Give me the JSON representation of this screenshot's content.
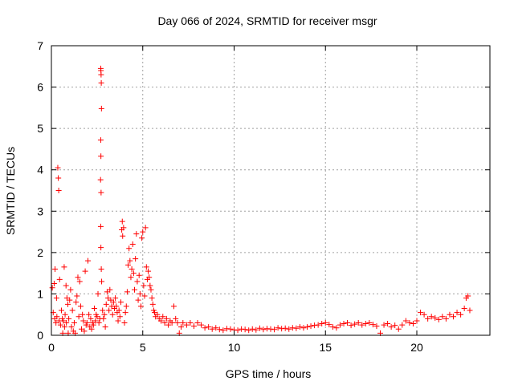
{
  "chart_data": {
    "type": "scatter",
    "title": "Day 066 of 2024, SRMTID for receiver msgr",
    "xlabel": "GPS time / hours",
    "ylabel": "SRMTID / TECUs",
    "xlim": [
      0,
      24
    ],
    "ylim": [
      0,
      7
    ],
    "xticks": [
      0,
      5,
      10,
      15,
      20
    ],
    "yticks": [
      0,
      1,
      2,
      3,
      4,
      5,
      6,
      7
    ],
    "xtick_labels": [
      "0",
      "5",
      "10",
      "15",
      "20"
    ],
    "ytick_labels": [
      "0",
      "1",
      "2",
      "3",
      "4",
      "5",
      "6",
      "7"
    ],
    "grid": true,
    "marker": "+",
    "color": "#ff0000",
    "series": [
      {
        "name": "SRMTID",
        "points": [
          [
            0.05,
            1.15
          ],
          [
            0.1,
            0.55
          ],
          [
            0.15,
            1.25
          ],
          [
            0.18,
            0.4
          ],
          [
            0.2,
            1.6
          ],
          [
            0.25,
            0.3
          ],
          [
            0.28,
            0.9
          ],
          [
            0.3,
            0.45
          ],
          [
            0.35,
            4.05
          ],
          [
            0.38,
            3.8
          ],
          [
            0.4,
            3.5
          ],
          [
            0.42,
            0.35
          ],
          [
            0.45,
            1.35
          ],
          [
            0.5,
            0.25
          ],
          [
            0.55,
            0.6
          ],
          [
            0.6,
            0.4
          ],
          [
            0.62,
            0.05
          ],
          [
            0.65,
            0.35
          ],
          [
            0.7,
            1.65
          ],
          [
            0.72,
            0.2
          ],
          [
            0.75,
            0.5
          ],
          [
            0.8,
            1.2
          ],
          [
            0.82,
            0.3
          ],
          [
            0.85,
            0.9
          ],
          [
            0.9,
            0.75
          ],
          [
            0.92,
            0.05
          ],
          [
            0.95,
            0.4
          ],
          [
            1.0,
            0.85
          ],
          [
            1.05,
            1.1
          ],
          [
            1.1,
            0.2
          ],
          [
            1.15,
            0.6
          ],
          [
            1.2,
            0.1
          ],
          [
            1.25,
            0.3
          ],
          [
            1.3,
            0.05
          ],
          [
            1.35,
            0.8
          ],
          [
            1.4,
            0.95
          ],
          [
            1.45,
            1.4
          ],
          [
            1.5,
            0.45
          ],
          [
            1.55,
            1.3
          ],
          [
            1.6,
            0.7
          ],
          [
            1.65,
            0.15
          ],
          [
            1.7,
            0.5
          ],
          [
            1.75,
            0.35
          ],
          [
            1.8,
            0.1
          ],
          [
            1.85,
            1.55
          ],
          [
            1.9,
            0.25
          ],
          [
            1.95,
            0.3
          ],
          [
            2.0,
            1.8
          ],
          [
            2.05,
            0.5
          ],
          [
            2.1,
            0.2
          ],
          [
            2.15,
            0.4
          ],
          [
            2.2,
            0.15
          ],
          [
            2.25,
            0.3
          ],
          [
            2.3,
            0.25
          ],
          [
            2.35,
            0.65
          ],
          [
            2.4,
            0.35
          ],
          [
            2.45,
            0.5
          ],
          [
            2.5,
            0.45
          ],
          [
            2.55,
            1.0
          ],
          [
            2.6,
            0.3
          ],
          [
            2.65,
            0.4
          ],
          [
            2.7,
            6.45
          ],
          [
            2.71,
            6.4
          ],
          [
            2.72,
            6.3
          ],
          [
            2.73,
            6.1
          ],
          [
            2.74,
            5.48
          ],
          [
            2.7,
            4.72
          ],
          [
            2.71,
            4.33
          ],
          [
            2.69,
            3.76
          ],
          [
            2.72,
            3.45
          ],
          [
            2.7,
            2.63
          ],
          [
            2.71,
            2.12
          ],
          [
            2.73,
            1.6
          ],
          [
            2.75,
            1.3
          ],
          [
            2.8,
            0.6
          ],
          [
            2.85,
            0.4
          ],
          [
            2.9,
            0.5
          ],
          [
            2.95,
            0.2
          ],
          [
            3.0,
            0.75
          ],
          [
            3.05,
            1.05
          ],
          [
            3.1,
            0.9
          ],
          [
            3.15,
            0.6
          ],
          [
            3.2,
            1.1
          ],
          [
            3.25,
            0.85
          ],
          [
            3.3,
            0.7
          ],
          [
            3.35,
            0.5
          ],
          [
            3.4,
            0.8
          ],
          [
            3.45,
            0.65
          ],
          [
            3.5,
            0.9
          ],
          [
            3.55,
            0.7
          ],
          [
            3.6,
            0.55
          ],
          [
            3.65,
            0.35
          ],
          [
            3.7,
            0.6
          ],
          [
            3.75,
            0.45
          ],
          [
            3.8,
            0.8
          ],
          [
            3.85,
            2.55
          ],
          [
            3.88,
            2.75
          ],
          [
            3.9,
            2.4
          ],
          [
            3.95,
            2.6
          ],
          [
            4.0,
            0.3
          ],
          [
            4.05,
            0.55
          ],
          [
            4.1,
            0.7
          ],
          [
            4.15,
            1.05
          ],
          [
            4.2,
            1.7
          ],
          [
            4.25,
            2.1
          ],
          [
            4.3,
            1.8
          ],
          [
            4.35,
            1.4
          ],
          [
            4.4,
            1.6
          ],
          [
            4.45,
            2.2
          ],
          [
            4.5,
            1.5
          ],
          [
            4.55,
            1.1
          ],
          [
            4.6,
            1.85
          ],
          [
            4.65,
            2.45
          ],
          [
            4.7,
            1.3
          ],
          [
            4.75,
            0.85
          ],
          [
            4.8,
            1.45
          ],
          [
            4.85,
            1.0
          ],
          [
            4.9,
            0.7
          ],
          [
            4.95,
            2.35
          ],
          [
            5.0,
            2.5
          ],
          [
            5.05,
            1.2
          ],
          [
            5.1,
            0.95
          ],
          [
            5.15,
            2.6
          ],
          [
            5.2,
            1.65
          ],
          [
            5.25,
            1.35
          ],
          [
            5.3,
            1.55
          ],
          [
            5.35,
            1.4
          ],
          [
            5.4,
            1.2
          ],
          [
            5.45,
            1.1
          ],
          [
            5.5,
            0.9
          ],
          [
            5.55,
            0.75
          ],
          [
            5.6,
            0.6
          ],
          [
            5.65,
            0.55
          ],
          [
            5.7,
            0.45
          ],
          [
            5.8,
            0.5
          ],
          [
            5.9,
            0.4
          ],
          [
            6.0,
            0.35
          ],
          [
            6.1,
            0.45
          ],
          [
            6.2,
            0.3
          ],
          [
            6.3,
            0.4
          ],
          [
            6.4,
            0.25
          ],
          [
            6.5,
            0.35
          ],
          [
            6.6,
            0.3
          ],
          [
            6.7,
            0.7
          ],
          [
            6.8,
            0.4
          ],
          [
            6.9,
            0.3
          ],
          [
            7.0,
            0.05
          ],
          [
            7.1,
            0.2
          ],
          [
            7.2,
            0.3
          ],
          [
            7.4,
            0.25
          ],
          [
            7.6,
            0.3
          ],
          [
            7.8,
            0.22
          ],
          [
            8.0,
            0.3
          ],
          [
            8.2,
            0.25
          ],
          [
            8.4,
            0.18
          ],
          [
            8.6,
            0.2
          ],
          [
            8.8,
            0.15
          ],
          [
            9.0,
            0.18
          ],
          [
            9.2,
            0.14
          ],
          [
            9.4,
            0.12
          ],
          [
            9.6,
            0.16
          ],
          [
            9.8,
            0.15
          ],
          [
            10.0,
            0.13
          ],
          [
            10.2,
            0.12
          ],
          [
            10.4,
            0.15
          ],
          [
            10.6,
            0.14
          ],
          [
            10.8,
            0.12
          ],
          [
            11.0,
            0.15
          ],
          [
            11.2,
            0.13
          ],
          [
            11.4,
            0.17
          ],
          [
            11.6,
            0.14
          ],
          [
            11.8,
            0.16
          ],
          [
            12.0,
            0.15
          ],
          [
            12.2,
            0.14
          ],
          [
            12.4,
            0.18
          ],
          [
            12.6,
            0.16
          ],
          [
            12.8,
            0.17
          ],
          [
            13.0,
            0.15
          ],
          [
            13.2,
            0.18
          ],
          [
            13.4,
            0.17
          ],
          [
            13.6,
            0.2
          ],
          [
            13.8,
            0.18
          ],
          [
            14.0,
            0.2
          ],
          [
            14.2,
            0.22
          ],
          [
            14.4,
            0.24
          ],
          [
            14.6,
            0.25
          ],
          [
            14.8,
            0.28
          ],
          [
            15.0,
            0.3
          ],
          [
            15.2,
            0.26
          ],
          [
            15.4,
            0.2
          ],
          [
            15.6,
            0.18
          ],
          [
            15.8,
            0.25
          ],
          [
            16.0,
            0.28
          ],
          [
            16.2,
            0.3
          ],
          [
            16.4,
            0.24
          ],
          [
            16.6,
            0.27
          ],
          [
            16.8,
            0.3
          ],
          [
            17.0,
            0.25
          ],
          [
            17.2,
            0.28
          ],
          [
            17.4,
            0.3
          ],
          [
            17.6,
            0.26
          ],
          [
            17.8,
            0.22
          ],
          [
            18.0,
            0.05
          ],
          [
            18.2,
            0.25
          ],
          [
            18.4,
            0.28
          ],
          [
            18.6,
            0.2
          ],
          [
            18.8,
            0.24
          ],
          [
            19.0,
            0.15
          ],
          [
            19.2,
            0.25
          ],
          [
            19.4,
            0.35
          ],
          [
            19.6,
            0.3
          ],
          [
            19.8,
            0.28
          ],
          [
            20.0,
            0.35
          ],
          [
            20.2,
            0.55
          ],
          [
            20.4,
            0.5
          ],
          [
            20.6,
            0.4
          ],
          [
            20.8,
            0.45
          ],
          [
            21.0,
            0.42
          ],
          [
            21.2,
            0.38
          ],
          [
            21.4,
            0.45
          ],
          [
            21.6,
            0.4
          ],
          [
            21.8,
            0.5
          ],
          [
            22.0,
            0.45
          ],
          [
            22.2,
            0.55
          ],
          [
            22.4,
            0.5
          ],
          [
            22.6,
            0.65
          ],
          [
            22.7,
            0.9
          ],
          [
            22.8,
            0.95
          ],
          [
            22.9,
            0.6
          ]
        ]
      }
    ]
  }
}
